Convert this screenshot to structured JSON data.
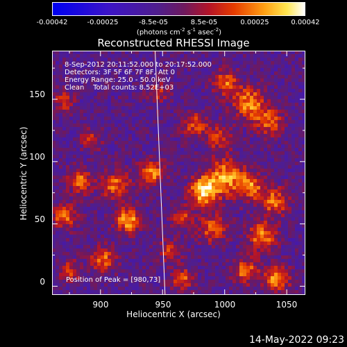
{
  "colorbar": {
    "ticks": [
      "-0.00042",
      "-0.00025",
      "-8.5e-05",
      "8.5e-05",
      "0.00025",
      "0.00042"
    ],
    "tick_values": [
      -0.00042,
      -0.00025,
      -8.5e-05,
      8.5e-05,
      0.00025,
      0.00042
    ],
    "unit_prefix": "(photons cm",
    "unit_exp1": "-2",
    "unit_mid1": " s",
    "unit_exp2": "-1",
    "unit_mid2": " asec",
    "unit_exp3": "-2",
    "unit_suffix": ")",
    "colormap": "blue-purple-red-orange-yellow-white"
  },
  "chart_data": {
    "type": "heatmap",
    "title": "Reconstructed RHESSI Image",
    "xlabel": "Heliocentric X (arcsec)",
    "ylabel": "Heliocentric Y (arcsec)",
    "xlim": [
      861,
      1065
    ],
    "ylim": [
      -7,
      189
    ],
    "xticks": [
      900,
      950,
      1000,
      1050
    ],
    "yticks": [
      0,
      50,
      100,
      150
    ],
    "info_lines": [
      "8-Sep-2012 20:11:52.000 to 20:17:52.000",
      "Detectors: 3F 5F 6F 7F 8F, Att 0",
      "Energy Range: 25.0 - 50.0 keV",
      "Clean    Total counts: 8.52E+03"
    ],
    "peak_label": "Position of Peak = [980,73]",
    "peak": [
      980,
      73
    ],
    "limb_line": [
      [
        944,
        189
      ],
      [
        952,
        -7
      ]
    ],
    "sources": [
      {
        "x": 983,
        "y": 76,
        "peak": 0.00042,
        "sigma": 8
      },
      {
        "x": 1000,
        "y": 88,
        "peak": 0.00033,
        "sigma": 10
      },
      {
        "x": 1020,
        "y": 80,
        "peak": 0.0003,
        "sigma": 8
      },
      {
        "x": 1040,
        "y": 68,
        "peak": 0.00028,
        "sigma": 8
      },
      {
        "x": 941,
        "y": 91,
        "peak": 0.00033,
        "sigma": 7
      },
      {
        "x": 922,
        "y": 53,
        "peak": 0.00038,
        "sigma": 7
      },
      {
        "x": 912,
        "y": 81,
        "peak": 0.00028,
        "sigma": 8
      },
      {
        "x": 884,
        "y": 84,
        "peak": 0.00028,
        "sigma": 7
      },
      {
        "x": 871,
        "y": 56,
        "peak": 0.00028,
        "sigma": 7
      },
      {
        "x": 1020,
        "y": 147,
        "peak": 0.00033,
        "sigma": 9
      },
      {
        "x": 1001,
        "y": 163,
        "peak": 0.00028,
        "sigma": 7
      },
      {
        "x": 1036,
        "y": 132,
        "peak": 0.00025,
        "sigma": 8
      },
      {
        "x": 976,
        "y": 130,
        "peak": 0.00025,
        "sigma": 7
      },
      {
        "x": 996,
        "y": 119,
        "peak": 0.00022,
        "sigma": 7
      },
      {
        "x": 1030,
        "y": 40,
        "peak": 0.00032,
        "sigma": 8
      },
      {
        "x": 1042,
        "y": 6,
        "peak": 0.00035,
        "sigma": 7
      },
      {
        "x": 1017,
        "y": 12,
        "peak": 0.00028,
        "sigma": 7
      },
      {
        "x": 990,
        "y": 46,
        "peak": 0.00025,
        "sigma": 8
      },
      {
        "x": 966,
        "y": 55,
        "peak": 0.00022,
        "sigma": 6
      },
      {
        "x": 902,
        "y": 22,
        "peak": 0.00028,
        "sigma": 7
      },
      {
        "x": 956,
        "y": 28,
        "peak": 0.00022,
        "sigma": 6
      },
      {
        "x": 966,
        "y": 6,
        "peak": 0.00025,
        "sigma": 6
      },
      {
        "x": 893,
        "y": 118,
        "peak": 0.00018,
        "sigma": 6
      },
      {
        "x": 876,
        "y": 12,
        "peak": 0.00022,
        "sigma": 6
      },
      {
        "x": 946,
        "y": 156,
        "peak": 0.00018,
        "sigma": 6
      },
      {
        "x": 870,
        "y": 148,
        "peak": 0.0002,
        "sigma": 6
      }
    ]
  },
  "footer": {
    "date": "14-May-2022 09:23"
  }
}
